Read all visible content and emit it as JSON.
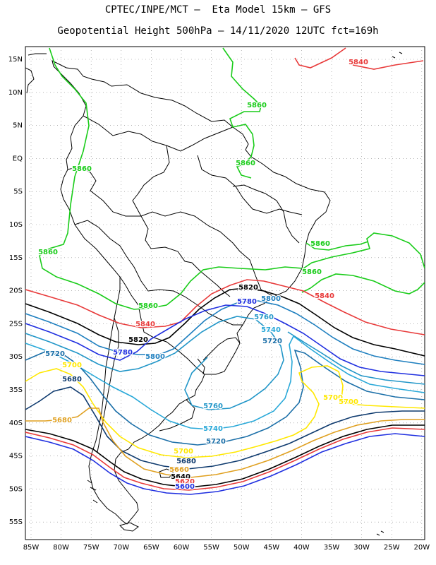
{
  "title_line1": "CPTEC/INPE/MCT –  Eta Model 15km – GFS",
  "title_line2": "Geopotential Height 500hPa – 14/11/2020 12UTC fct=169h",
  "lat_labels": [
    "15N",
    "10N",
    "5N",
    "EQ",
    "5S",
    "10S",
    "15S",
    "20S",
    "25S",
    "30S",
    "35S",
    "40S",
    "45S",
    "50S",
    "55S"
  ],
  "lon_labels": [
    "85W",
    "80W",
    "75W",
    "70W",
    "65W",
    "60W",
    "55W",
    "50W",
    "45W",
    "40W",
    "35W",
    "30W",
    "25W",
    "20W"
  ],
  "colors": {
    "c5860": "#19cc19",
    "c5840": "#e83a3a",
    "c5820": "#000000",
    "c5800": "#1e7fbf",
    "c5780": "#1f2fe0",
    "c5760": "#2196c8",
    "c5740": "#28a8d8",
    "c5720": "#1b6fa8",
    "c5700": "#ffe800",
    "c5680": "#0e3a6e",
    "c5660": "#e0a020",
    "land": "#000000",
    "grid": "#888888"
  },
  "contour_labels": [
    {
      "text": "5840",
      "color": "c5840"
    },
    {
      "text": "5860",
      "color": "c5860"
    },
    {
      "text": "5860",
      "color": "c5860"
    },
    {
      "text": "5860",
      "color": "c5860"
    },
    {
      "text": "5860",
      "color": "c5860"
    },
    {
      "text": "5860",
      "color": "c5860"
    },
    {
      "text": "5860",
      "color": "c5860"
    },
    {
      "text": "5820",
      "color": "c5820"
    },
    {
      "text": "5840",
      "color": "c5840"
    },
    {
      "text": "5800",
      "color": "c5800"
    },
    {
      "text": "5780",
      "color": "c5780"
    },
    {
      "text": "5760",
      "color": "c5760"
    },
    {
      "text": "5740",
      "color": "c5740"
    },
    {
      "text": "5720",
      "color": "c5720"
    },
    {
      "text": "5860",
      "color": "c5860"
    },
    {
      "text": "5840",
      "color": "c5840"
    },
    {
      "text": "5820",
      "color": "c5820"
    },
    {
      "text": "5780",
      "color": "c5780"
    },
    {
      "text": "5800",
      "color": "c5800"
    },
    {
      "text": "5720",
      "color": "c5720"
    },
    {
      "text": "5700",
      "color": "c5700"
    },
    {
      "text": "5680",
      "color": "c5680"
    },
    {
      "text": "5680",
      "color": "c5660"
    },
    {
      "text": "5760",
      "color": "c5760"
    },
    {
      "text": "5740",
      "color": "c5740"
    },
    {
      "text": "5720",
      "color": "c5720"
    },
    {
      "text": "5700",
      "color": "c5700"
    },
    {
      "text": "5680",
      "color": "c5680"
    },
    {
      "text": "5660",
      "color": "c5660"
    },
    {
      "text": "5640",
      "color": "c5820"
    },
    {
      "text": "5620",
      "color": "c5840"
    },
    {
      "text": "5600",
      "color": "c5780"
    },
    {
      "text": "5700",
      "color": "c5700"
    },
    {
      "text": "5700",
      "color": "c5700"
    }
  ]
}
